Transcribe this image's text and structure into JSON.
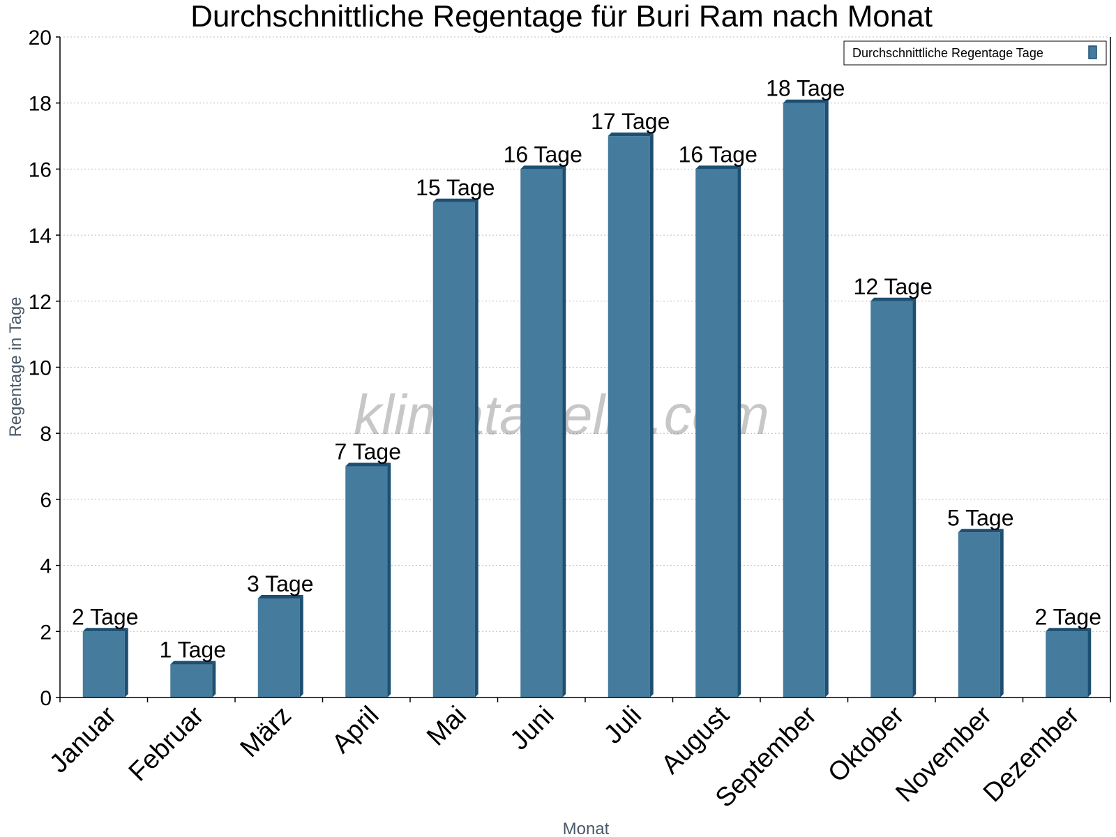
{
  "chart_data": {
    "type": "bar",
    "title": "Durchschnittliche Regentage für Buri Ram nach Monat",
    "xlabel": "Monat",
    "ylabel": "Regentage in Tage",
    "ylim": [
      0,
      20
    ],
    "yticks": [
      0,
      2,
      4,
      6,
      8,
      10,
      12,
      14,
      16,
      18,
      20
    ],
    "grid": true,
    "legend_position": "top-right",
    "categories": [
      "Januar",
      "Februar",
      "März",
      "April",
      "Mai",
      "Juni",
      "Juli",
      "August",
      "September",
      "Oktober",
      "November",
      "Dezember"
    ],
    "series": [
      {
        "name": "Durchschnittliche Regentage Tage",
        "values": [
          2,
          1,
          3,
          7,
          15,
          16,
          17,
          16,
          18,
          12,
          5,
          2
        ],
        "data_labels": [
          "2 Tage",
          "1 Tage",
          "3 Tage",
          "7 Tage",
          "15 Tage",
          "16 Tage",
          "17 Tage",
          "16 Tage",
          "18 Tage",
          "12 Tage",
          "5 Tage",
          "2 Tage"
        ],
        "color": "#457b9d",
        "side_color": "#1d4f72"
      }
    ],
    "watermark": "klimatabelle.com"
  }
}
